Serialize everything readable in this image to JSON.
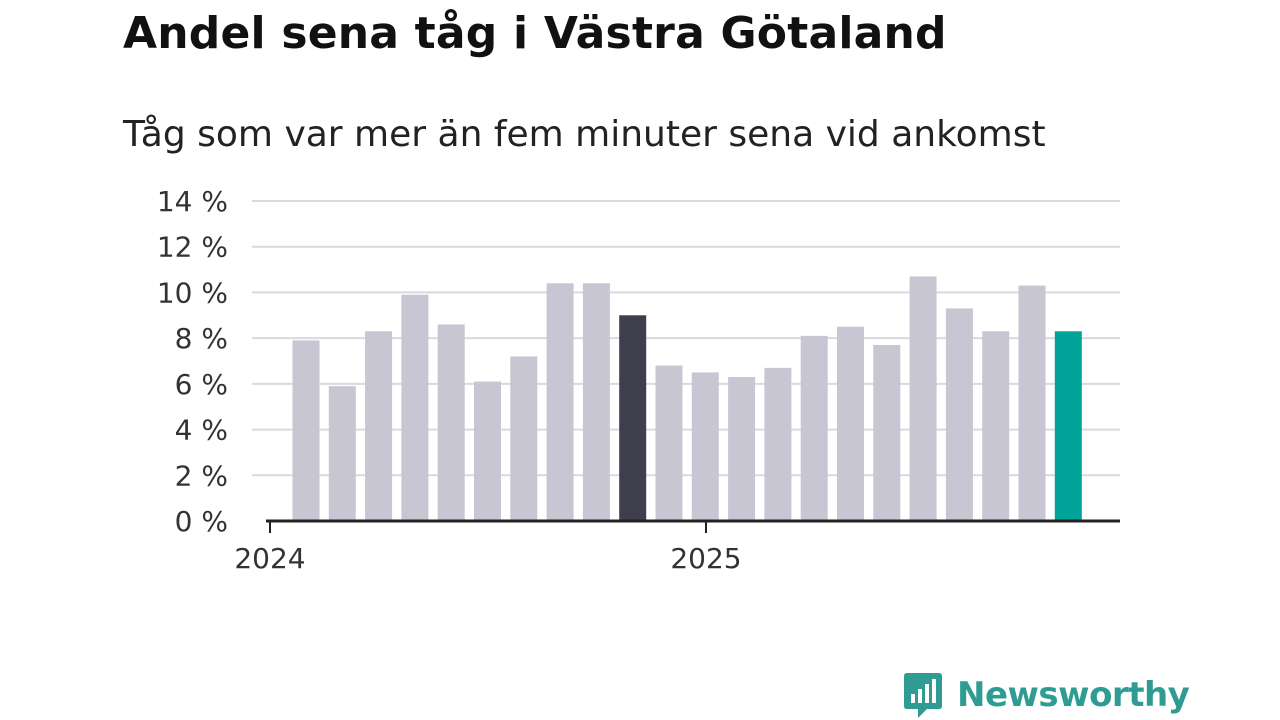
{
  "header": {
    "title": "Andel sena tåg i Västra Götaland",
    "subtitle": "Tåg som var mer än fem minuter sena vid ankomst"
  },
  "brand": {
    "name": "Newsworthy",
    "icon": "newsworthy-logo-icon",
    "color": "#2f9c93"
  },
  "colors": {
    "bar": "#c8c6d2",
    "highlight_dark": "#3f3e4c",
    "highlight_current": "#00a398",
    "grid": "#d9d9de",
    "axis": "#222222"
  },
  "chart_data": {
    "type": "bar",
    "ylim": [
      0,
      14
    ],
    "yticks": [
      0,
      2,
      4,
      6,
      8,
      10,
      12,
      14
    ],
    "ytick_labels": [
      "0 %",
      "2 %",
      "4 %",
      "6 %",
      "8 %",
      "10 %",
      "12 %",
      "14 %"
    ],
    "xtick_labels": [
      {
        "label": "2024",
        "index": 0
      },
      {
        "label": "2025",
        "index": 12
      }
    ],
    "grid": true,
    "values": [
      7.9,
      5.9,
      8.3,
      9.9,
      8.6,
      6.1,
      7.2,
      10.4,
      10.4,
      9.0,
      6.8,
      6.5,
      6.3,
      6.7,
      8.1,
      8.5,
      7.7,
      10.7,
      9.3,
      8.3,
      10.3,
      8.3
    ],
    "highlight": [
      {
        "index": 9,
        "color": "highlight_dark"
      },
      {
        "index": 21,
        "color": "highlight_current"
      }
    ]
  }
}
